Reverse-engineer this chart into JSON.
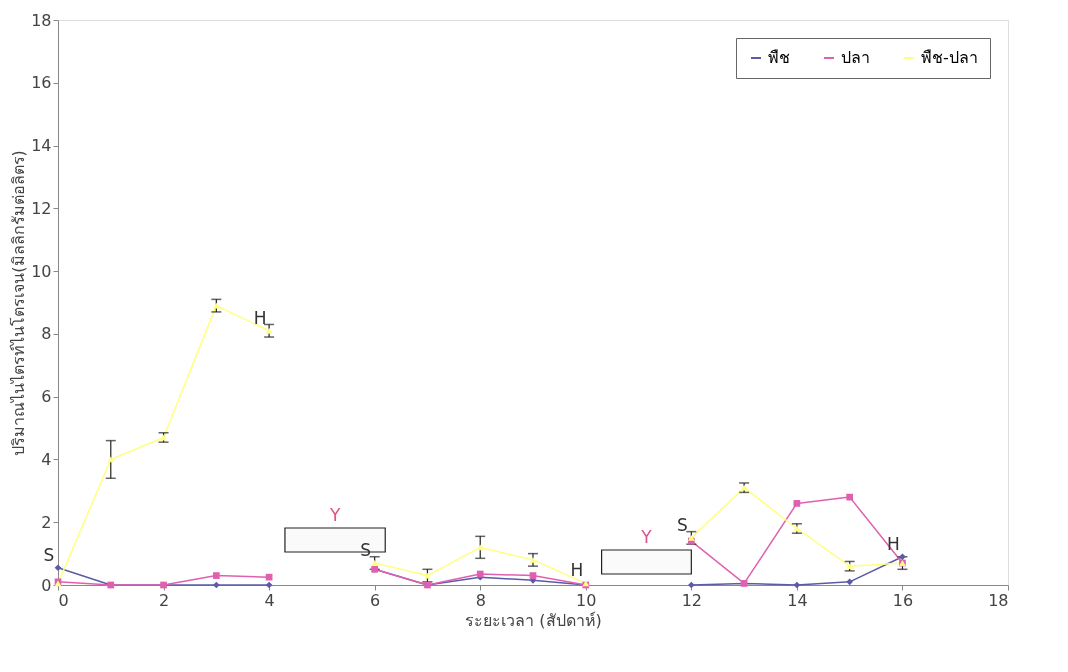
{
  "chart_data": {
    "type": "line",
    "xlabel": "ระยะเวลา (สัปดาห์)",
    "ylabel": "ปริมาณไนไตรท์ไนโตรเจน(มิลลิกรัมต่อลิตร)",
    "x": [
      0,
      1,
      2,
      3,
      4,
      5,
      6,
      7,
      8,
      9,
      10,
      11,
      12,
      13,
      14,
      15,
      16
    ],
    "series": [
      {
        "name": "พืช",
        "color": "#5b5ba8",
        "marker": "diamond",
        "values": [
          0.55,
          0,
          0,
          0,
          0,
          null,
          0.5,
          0,
          0.25,
          0.15,
          0,
          null,
          0,
          0.05,
          0,
          0.1,
          0.9
        ]
      },
      {
        "name": "ปลา",
        "color": "#e060b0",
        "marker": "square",
        "values": [
          0.1,
          0,
          0,
          0.3,
          0.25,
          null,
          0.5,
          0,
          0.35,
          0.3,
          0,
          null,
          1.4,
          0.05,
          2.6,
          2.8,
          0.7
        ]
      },
      {
        "name": "พืช-ปลา",
        "color": "#ffff80",
        "marker": "triangle",
        "values": [
          0.05,
          4.0,
          4.7,
          8.9,
          8.1,
          null,
          0.7,
          0.3,
          1.2,
          0.8,
          0.05,
          null,
          1.5,
          3.1,
          1.8,
          0.6,
          0.7
        ],
        "errors": [
          null,
          0.6,
          0.15,
          0.2,
          0.2,
          null,
          0.2,
          0.2,
          0.35,
          0.2,
          null,
          null,
          0.2,
          0.15,
          0.15,
          0.15,
          0.2
        ]
      }
    ],
    "annotations": [
      {
        "text": "S",
        "x": 0,
        "y": 0.55
      },
      {
        "text": "H",
        "x": 4,
        "y": 8.1
      },
      {
        "text": "S",
        "x": 6,
        "y": 0.7
      },
      {
        "text": "H",
        "x": 10,
        "y": 0.05
      },
      {
        "text": "S",
        "x": 12,
        "y": 1.5
      },
      {
        "text": "H",
        "x": 16,
        "y": 0.9
      }
    ],
    "bands": [
      {
        "axis": "x",
        "from": 4.3,
        "to": 6.2,
        "label": "Y"
      },
      {
        "axis": "x",
        "from": 10.3,
        "to": 12,
        "label": "Y"
      }
    ],
    "xlim": [
      0,
      18
    ],
    "xticks": [
      0,
      2,
      4,
      6,
      8,
      10,
      12,
      14,
      16,
      18
    ],
    "ylim": [
      0,
      18
    ],
    "yticks": [
      0,
      2,
      4,
      6,
      8,
      10,
      12,
      14,
      16,
      18
    ],
    "grid": false,
    "legend": "top right"
  }
}
